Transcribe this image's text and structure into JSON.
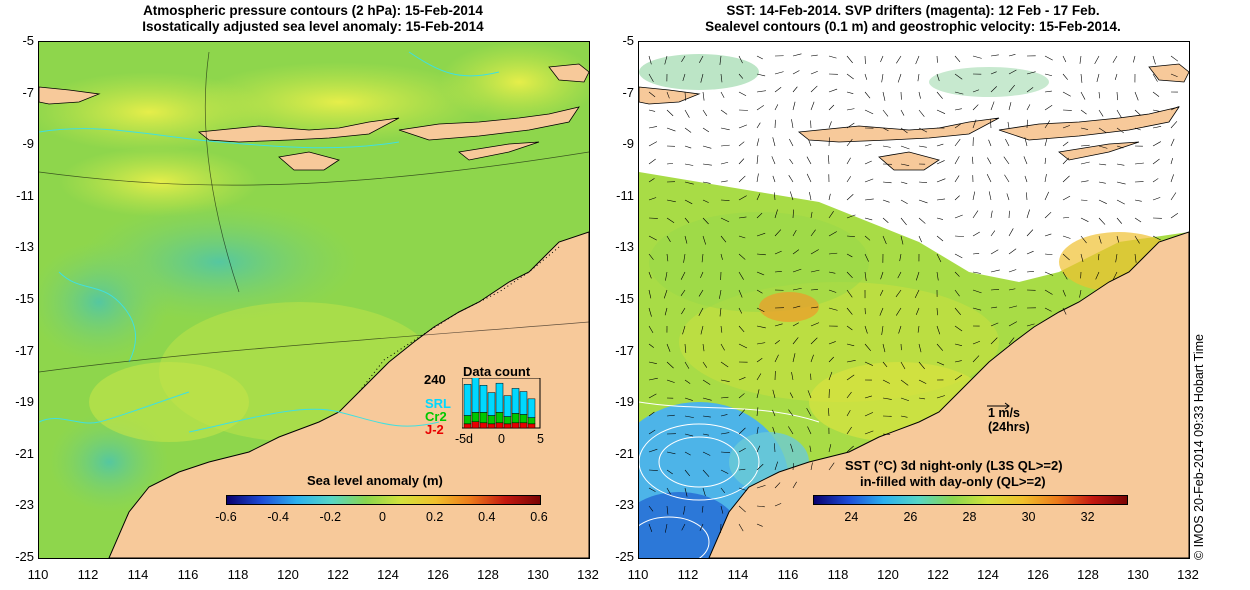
{
  "left_panel": {
    "title_line1": "Atmospheric pressure contours (2 hPa): 15-Feb-2014",
    "title_line2": "Isostatically adjusted sea level anomaly: 15-Feb-2014",
    "y_ticks": [
      "-5",
      "-7",
      "-9",
      "-11",
      "-13",
      "-15",
      "-17",
      "-19",
      "-21",
      "-23",
      "-25"
    ],
    "x_ticks": [
      "110",
      "112",
      "114",
      "116",
      "118",
      "120",
      "122",
      "124",
      "126",
      "128",
      "130",
      "132"
    ],
    "colorbar_title": "Sea level anomaly (m)",
    "colorbar_ticks": [
      "-0.6",
      "-0.4",
      "-0.2",
      "0",
      "0.2",
      "0.4",
      "0.6"
    ],
    "inset": {
      "title": "Data count",
      "y_max": "240",
      "x_ticks": [
        "-5",
        "0",
        "5"
      ],
      "x_prefix": "d",
      "legend": [
        {
          "label": "SRL",
          "color": "#00d8ff"
        },
        {
          "label": "Cr2",
          "color": "#00c800"
        },
        {
          "label": "J-2",
          "color": "#e80000"
        }
      ],
      "bars": [
        {
          "srl": 150,
          "cr2": 40,
          "j2": 20
        },
        {
          "srl": 170,
          "cr2": 45,
          "j2": 30
        },
        {
          "srl": 130,
          "cr2": 50,
          "j2": 25
        },
        {
          "srl": 110,
          "cr2": 40,
          "j2": 20
        },
        {
          "srl": 140,
          "cr2": 50,
          "j2": 25
        },
        {
          "srl": 100,
          "cr2": 35,
          "j2": 20
        },
        {
          "srl": 120,
          "cr2": 45,
          "j2": 25
        },
        {
          "srl": 110,
          "cr2": 40,
          "j2": 25
        },
        {
          "srl": 90,
          "cr2": 30,
          "j2": 20
        }
      ]
    }
  },
  "right_panel": {
    "title_line1": "SST: 14-Feb-2014. SVP drifters (magenta): 12 Feb - 17 Feb.",
    "title_line2": "Sealevel contours (0.1 m) and geostrophic velocity: 15-Feb-2014.",
    "y_ticks": [
      "-5",
      "-7",
      "-9",
      "-11",
      "-13",
      "-15",
      "-17",
      "-19",
      "-21",
      "-23",
      "-25"
    ],
    "x_ticks": [
      "110",
      "112",
      "114",
      "116",
      "118",
      "120",
      "122",
      "124",
      "126",
      "128",
      "130",
      "132"
    ],
    "velocity_label": "1 m/s",
    "velocity_sub": "(24hrs)",
    "colorbar_title_line1": "SST (°C)  3d night-only (L3S QL>=2)",
    "colorbar_title_line2": "in-filled with day-only (QL>=2)",
    "colorbar_ticks": [
      "24",
      "26",
      "28",
      "30",
      "32"
    ]
  },
  "credit": "© IMOS 20-Feb-2014 09:33 Hobart Time",
  "colors": {
    "land": "#f7c99a",
    "sea_green": "#a6e04a",
    "coast": "#000000",
    "isobath": "#40e0e0"
  }
}
